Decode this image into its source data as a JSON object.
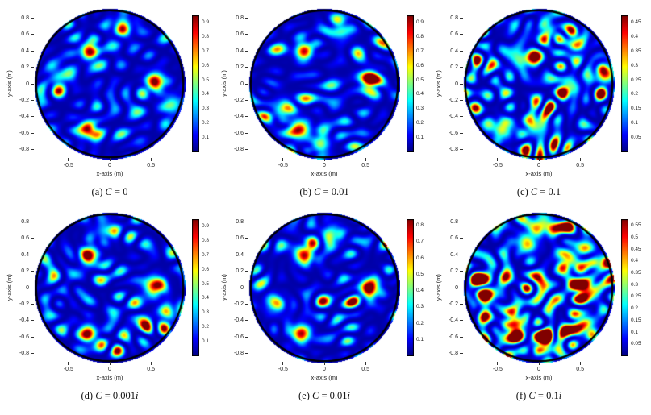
{
  "figure": {
    "background": "#ffffff",
    "rows": 2,
    "cols": 3
  },
  "chart_data": [
    {
      "type": "heatmap",
      "colormap": "jet",
      "domain": "disk",
      "disk_radius": 0.9,
      "title": "(a) C = 0",
      "caption": {
        "index": "(a) ",
        "variable": "C",
        "eq": " = ",
        "value": "0",
        "imag": ""
      },
      "xlabel": "x-axis (m)",
      "ylabel": "y-axis (m)",
      "xlim": [
        -0.9,
        0.9
      ],
      "ylim": [
        -0.9,
        0.9
      ],
      "x_ticks": [
        "-0.5",
        "0",
        "0.5"
      ],
      "y_ticks": [
        "0.8",
        "0.6",
        "0.4",
        "0.2",
        "0",
        "-0.2",
        "-0.4",
        "-0.6",
        "-0.8"
      ],
      "colorbar_ticks": [
        "0.9",
        "0.8",
        "0.7",
        "0.6",
        "0.5",
        "0.4",
        "0.3",
        "0.2",
        "0.1"
      ],
      "colorbar_max": 0.95,
      "hotspots": [
        {
          "x": -0.25,
          "y": 0.4,
          "peak": 0.95,
          "sigma": 0.065
        },
        {
          "x": 0.55,
          "y": 0.03,
          "peak": 0.97,
          "sigma": 0.07
        },
        {
          "x": -0.27,
          "y": -0.55,
          "peak": 0.93,
          "sigma": 0.065
        },
        {
          "x": 0.15,
          "y": 0.7,
          "peak": 0.35,
          "sigma": 0.08
        },
        {
          "x": 0.75,
          "y": -0.25,
          "peak": 0.38,
          "sigma": 0.08
        },
        {
          "x": -0.62,
          "y": 0.08,
          "peak": 0.3,
          "sigma": 0.08
        }
      ],
      "noise": {
        "seed": 11,
        "level": 0.18
      }
    },
    {
      "type": "heatmap",
      "colormap": "jet",
      "domain": "disk",
      "disk_radius": 0.9,
      "title": "(b) C = 0.01",
      "caption": {
        "index": "(b) ",
        "variable": "C",
        "eq": " = ",
        "value": "0.01",
        "imag": ""
      },
      "xlabel": "x-axis (m)",
      "ylabel": "y-axis (m)",
      "xlim": [
        -0.9,
        0.9
      ],
      "ylim": [
        -0.9,
        0.9
      ],
      "x_ticks": [
        "-0.5",
        "0",
        "0.5"
      ],
      "y_ticks": [
        "0.8",
        "0.6",
        "0.4",
        "0.2",
        "0",
        "-0.2",
        "-0.4",
        "-0.6",
        "-0.8"
      ],
      "colorbar_ticks": [
        "0.9",
        "0.8",
        "0.7",
        "0.6",
        "0.5",
        "0.4",
        "0.3",
        "0.2",
        "0.1"
      ],
      "colorbar_max": 0.95,
      "hotspots": [
        {
          "x": -0.25,
          "y": 0.4,
          "peak": 0.9,
          "sigma": 0.065
        },
        {
          "x": 0.55,
          "y": 0.05,
          "peak": 0.95,
          "sigma": 0.07
        },
        {
          "x": -0.3,
          "y": -0.55,
          "peak": 0.85,
          "sigma": 0.075
        },
        {
          "x": -0.5,
          "y": -0.3,
          "peak": 0.45,
          "sigma": 0.08
        },
        {
          "x": -0.05,
          "y": -0.72,
          "peak": 0.5,
          "sigma": 0.07
        },
        {
          "x": 0.2,
          "y": 0.65,
          "peak": 0.35,
          "sigma": 0.08
        }
      ],
      "noise": {
        "seed": 23,
        "level": 0.22
      }
    },
    {
      "type": "heatmap",
      "colormap": "jet",
      "domain": "disk",
      "disk_radius": 0.9,
      "title": "(c) C = 0.1",
      "caption": {
        "index": "(c) ",
        "variable": "C",
        "eq": " = ",
        "value": "0.1",
        "imag": ""
      },
      "xlabel": "x-axis (m)",
      "ylabel": "y-axis (m)",
      "xlim": [
        -0.9,
        0.9
      ],
      "ylim": [
        -0.9,
        0.9
      ],
      "x_ticks": [
        "-0.5",
        "0",
        "0.5"
      ],
      "y_ticks": [
        "0.8",
        "0.6",
        "0.4",
        "0.2",
        "0",
        "-0.2",
        "-0.4",
        "-0.6",
        "-0.8"
      ],
      "colorbar_ticks": [
        "0.45",
        "0.4",
        "0.35",
        "0.3",
        "0.25",
        "0.2",
        "0.15",
        "0.1",
        "0.05"
      ],
      "colorbar_max": 0.475,
      "hotspots": [
        {
          "x": 0.8,
          "y": 0.13,
          "peak": 0.88,
          "sigma": 0.07
        },
        {
          "x": 0.35,
          "y": -0.05,
          "peak": 0.5,
          "sigma": 0.08
        },
        {
          "x": -0.2,
          "y": 0.3,
          "peak": 0.45,
          "sigma": 0.08
        },
        {
          "x": -0.05,
          "y": -0.5,
          "peak": 0.5,
          "sigma": 0.08
        },
        {
          "x": -0.45,
          "y": -0.55,
          "peak": 0.55,
          "sigma": 0.08
        },
        {
          "x": 0.45,
          "y": 0.5,
          "peak": 0.4,
          "sigma": 0.08
        },
        {
          "x": 0.1,
          "y": 0.65,
          "peak": 0.4,
          "sigma": 0.07
        }
      ],
      "noise": {
        "seed": 37,
        "level": 0.32
      }
    },
    {
      "type": "heatmap",
      "colormap": "jet",
      "domain": "disk",
      "disk_radius": 0.9,
      "title": "(d) C = 0.001i",
      "caption": {
        "index": "(d) ",
        "variable": "C",
        "eq": " = ",
        "value": "0.001",
        "imag": "i"
      },
      "xlabel": "x-axis (m)",
      "ylabel": "y-axis (m)",
      "xlim": [
        -0.9,
        0.9
      ],
      "ylim": [
        -0.9,
        0.9
      ],
      "x_ticks": [
        "-0.5",
        "0",
        "0.5"
      ],
      "y_ticks": [
        "0.8",
        "0.6",
        "0.4",
        "0.2",
        "0",
        "-0.2",
        "-0.4",
        "-0.6",
        "-0.8"
      ],
      "colorbar_ticks": [
        "0.9",
        "0.8",
        "0.7",
        "0.6",
        "0.5",
        "0.4",
        "0.3",
        "0.2",
        "0.1"
      ],
      "colorbar_max": 0.95,
      "hotspots": [
        {
          "x": -0.25,
          "y": 0.4,
          "peak": 0.95,
          "sigma": 0.065
        },
        {
          "x": 0.55,
          "y": 0.03,
          "peak": 0.96,
          "sigma": 0.07
        },
        {
          "x": -0.27,
          "y": -0.55,
          "peak": 0.94,
          "sigma": 0.065
        },
        {
          "x": 0.7,
          "y": -0.3,
          "peak": 0.35,
          "sigma": 0.08
        },
        {
          "x": -0.05,
          "y": 0.7,
          "peak": 0.3,
          "sigma": 0.08
        }
      ],
      "noise": {
        "seed": 51,
        "level": 0.18
      }
    },
    {
      "type": "heatmap",
      "colormap": "jet",
      "domain": "disk",
      "disk_radius": 0.9,
      "title": "(e) C = 0.01i",
      "caption": {
        "index": "(e) ",
        "variable": "C",
        "eq": " = ",
        "value": "0.01",
        "imag": "i"
      },
      "xlabel": "x-axis (m)",
      "ylabel": "y-axis (m)",
      "xlim": [
        -0.9,
        0.9
      ],
      "ylim": [
        -0.9,
        0.9
      ],
      "x_ticks": [
        "-0.5",
        "0",
        "0.5"
      ],
      "y_ticks": [
        "0.8",
        "0.6",
        "0.4",
        "0.2",
        "0",
        "-0.2",
        "-0.4",
        "-0.6",
        "-0.8"
      ],
      "colorbar_ticks": [
        "0.8",
        "0.7",
        "0.6",
        "0.5",
        "0.4",
        "0.3",
        "0.2",
        "0.1"
      ],
      "colorbar_max": 0.84,
      "hotspots": [
        {
          "x": -0.25,
          "y": 0.4,
          "peak": 0.93,
          "sigma": 0.07
        },
        {
          "x": 0.55,
          "y": 0.0,
          "peak": 0.96,
          "sigma": 0.075
        },
        {
          "x": -0.28,
          "y": -0.55,
          "peak": 0.9,
          "sigma": 0.07
        },
        {
          "x": 0.1,
          "y": 0.65,
          "peak": 0.4,
          "sigma": 0.08
        },
        {
          "x": -0.6,
          "y": -0.2,
          "peak": 0.35,
          "sigma": 0.08
        }
      ],
      "noise": {
        "seed": 67,
        "level": 0.2
      }
    },
    {
      "type": "heatmap",
      "colormap": "jet",
      "domain": "disk",
      "disk_radius": 0.9,
      "title": "(f) C = 0.1i",
      "caption": {
        "index": "(f) ",
        "variable": "C",
        "eq": " = ",
        "value": "0.1",
        "imag": "i"
      },
      "xlabel": "x-axis (m)",
      "ylabel": "y-axis (m)",
      "xlim": [
        -0.9,
        0.9
      ],
      "ylim": [
        -0.9,
        0.9
      ],
      "x_ticks": [
        "-0.5",
        "0",
        "0.5"
      ],
      "y_ticks": [
        "0.8",
        "0.6",
        "0.4",
        "0.2",
        "0",
        "-0.2",
        "-0.4",
        "-0.6",
        "-0.8"
      ],
      "colorbar_ticks": [
        "0.55",
        "0.5",
        "0.45",
        "0.4",
        "0.35",
        "0.3",
        "0.25",
        "0.2",
        "0.15",
        "0.1",
        "0.05"
      ],
      "colorbar_max": 0.578,
      "hotspots": [
        {
          "x": 0.55,
          "y": 0.0,
          "peak": 0.92,
          "sigma": 0.08
        },
        {
          "x": -0.3,
          "y": -0.45,
          "peak": 0.85,
          "sigma": 0.08
        },
        {
          "x": -0.15,
          "y": 0.55,
          "peak": 0.6,
          "sigma": 0.08
        },
        {
          "x": 0.35,
          "y": 0.35,
          "peak": 0.6,
          "sigma": 0.08
        },
        {
          "x": 0.55,
          "y": -0.45,
          "peak": 0.65,
          "sigma": 0.08
        },
        {
          "x": 0.05,
          "y": -0.7,
          "peak": 0.65,
          "sigma": 0.075
        },
        {
          "x": -0.65,
          "y": -0.1,
          "peak": 0.5,
          "sigma": 0.08
        },
        {
          "x": 0.1,
          "y": 0.75,
          "peak": 0.55,
          "sigma": 0.07
        },
        {
          "x": 0.75,
          "y": 0.3,
          "peak": 0.5,
          "sigma": 0.07
        }
      ],
      "noise": {
        "seed": 83,
        "level": 0.38
      }
    }
  ]
}
